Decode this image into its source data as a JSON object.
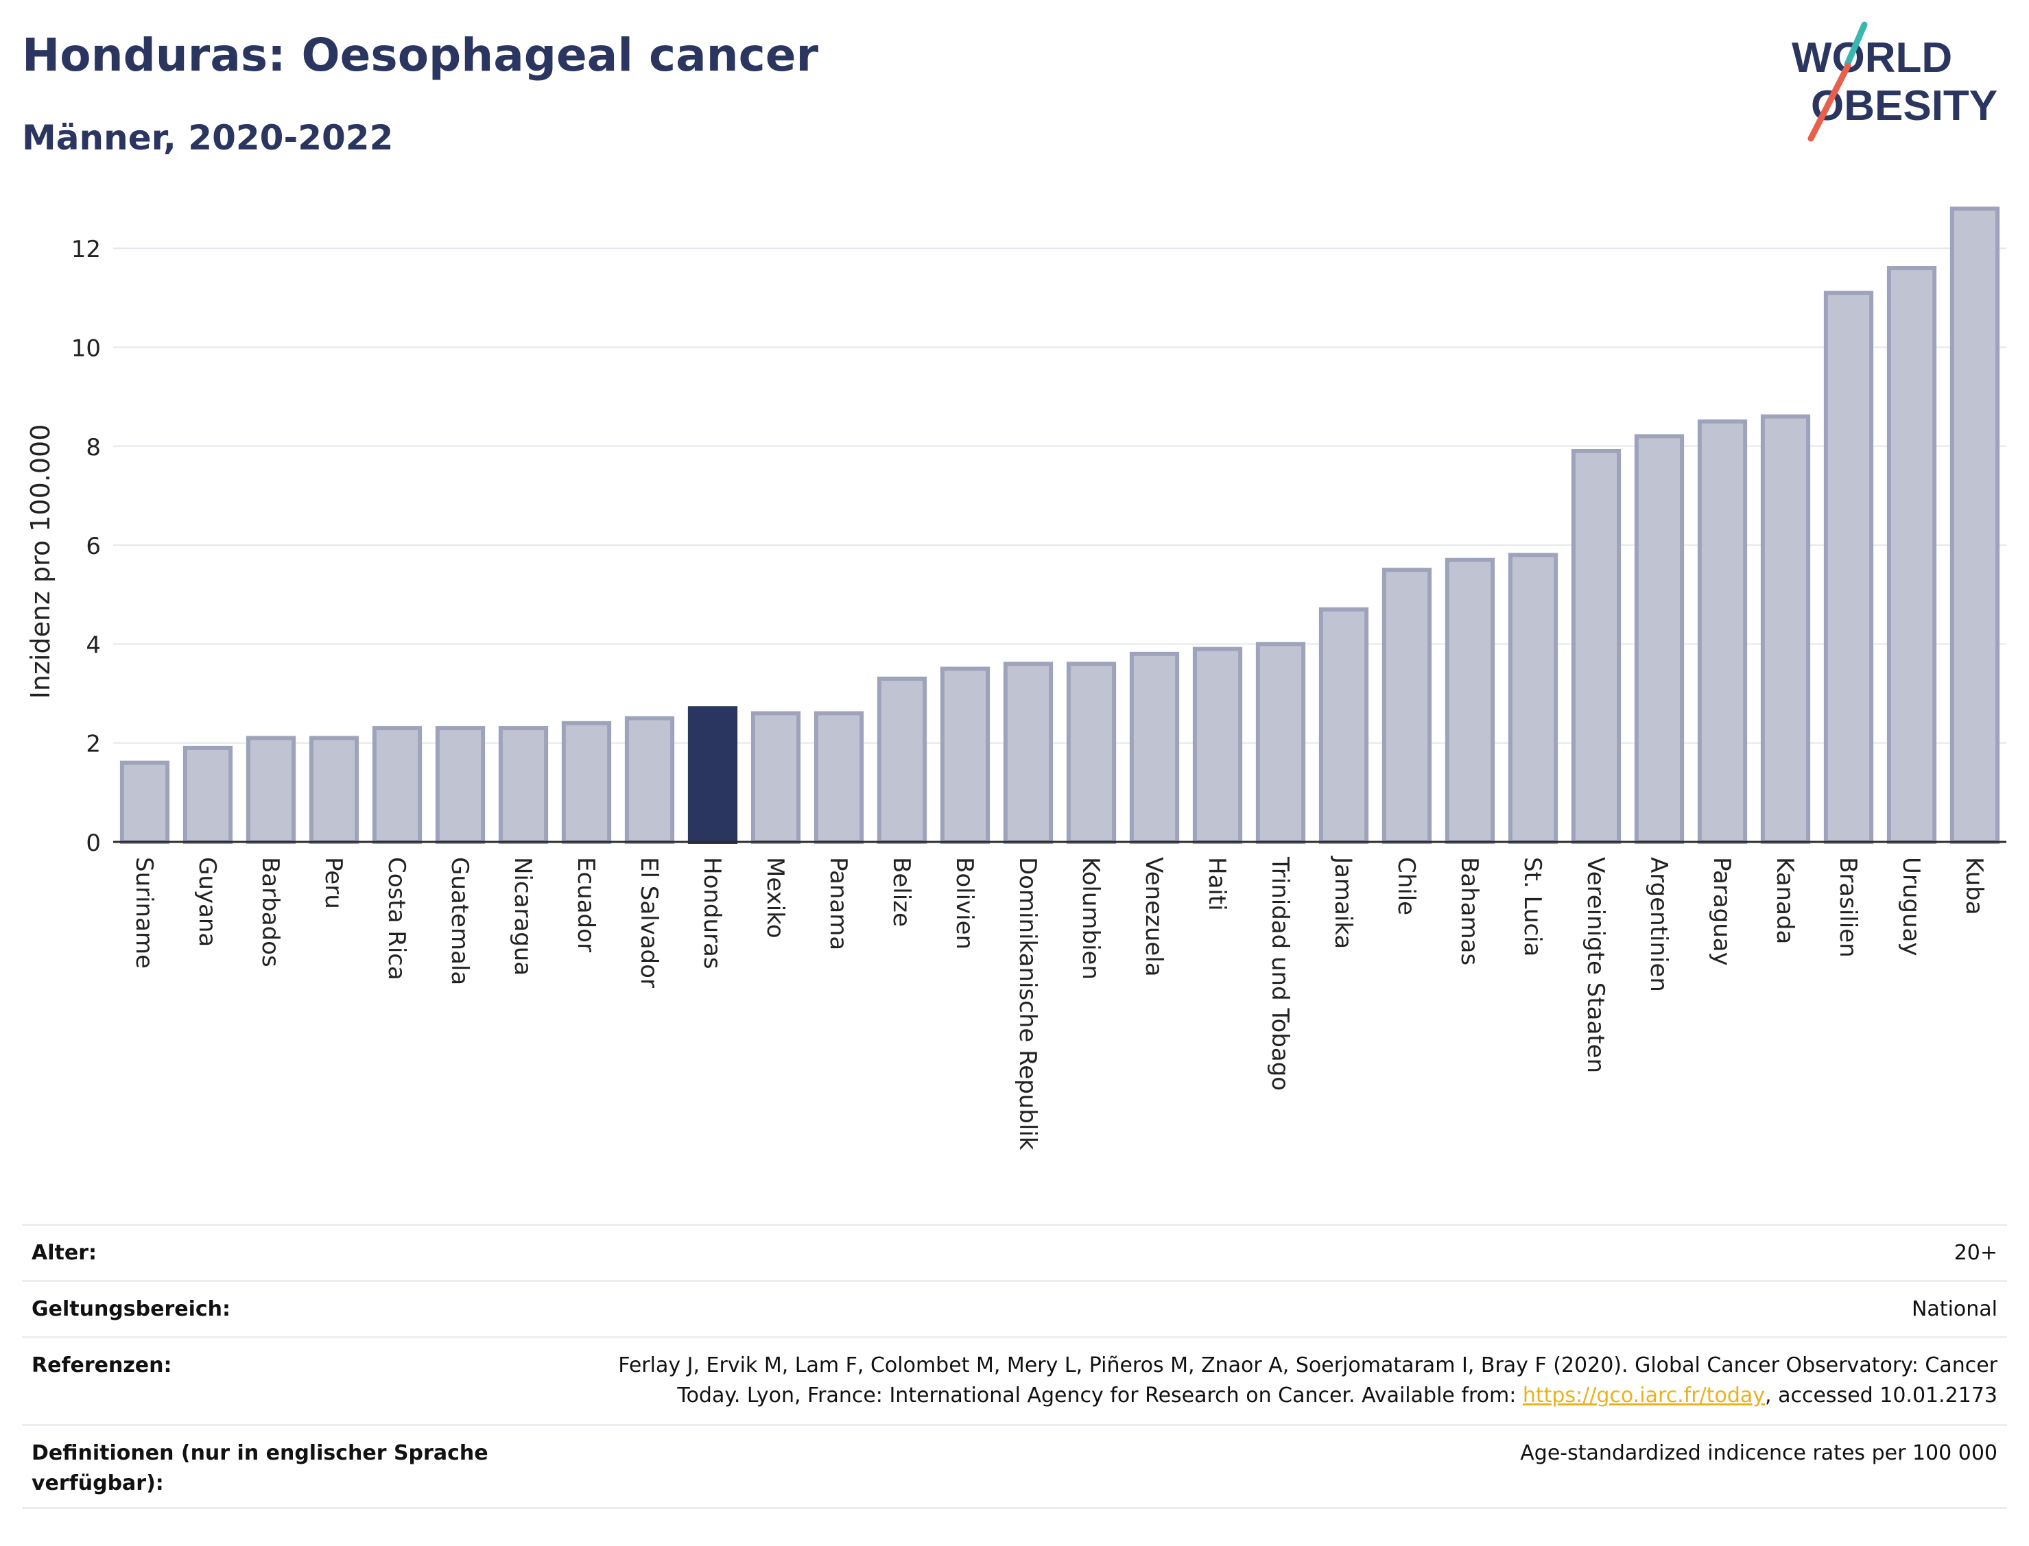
{
  "header": {
    "title": "Honduras: Oesophageal cancer",
    "subtitle": "Männer, 2020-2022"
  },
  "logo": {
    "line1": "WORLD",
    "line2": "OBESITY",
    "colors": {
      "text": "#2a3560",
      "slash_teal": "#38b6b0",
      "slash_red": "#e8604c"
    }
  },
  "chart_data": {
    "type": "bar",
    "ylabel": "Inzidenz pro 100.000",
    "ylim": [
      0,
      13
    ],
    "yticks": [
      0,
      2,
      4,
      6,
      8,
      10,
      12
    ],
    "grid": true,
    "highlight": "Honduras",
    "colors": {
      "bar": "#c0c3d1",
      "bar_edge": "#9ea3bb",
      "highlight": "#2a3560"
    },
    "categories": [
      "Suriname",
      "Guyana",
      "Barbados",
      "Peru",
      "Costa Rica",
      "Guatemala",
      "Nicaragua",
      "Ecuador",
      "El Salvador",
      "Honduras",
      "Mexiko",
      "Panama",
      "Belize",
      "Bolivien",
      "Dominikanische Republik",
      "Kolumbien",
      "Venezuela",
      "Haiti",
      "Trinidad und Tobago",
      "Jamaika",
      "Chile",
      "Bahamas",
      "St. Lucia",
      "Vereinigte Staaten",
      "Argentinien",
      "Paraguay",
      "Kanada",
      "Brasilien",
      "Uruguay",
      "Kuba"
    ],
    "values": [
      1.6,
      1.9,
      2.1,
      2.1,
      2.3,
      2.3,
      2.3,
      2.4,
      2.5,
      2.7,
      2.6,
      2.6,
      3.3,
      3.5,
      3.6,
      3.6,
      3.8,
      3.9,
      4.0,
      4.7,
      5.5,
      5.7,
      5.8,
      7.9,
      8.2,
      8.5,
      8.6,
      11.1,
      11.6,
      12.8
    ]
  },
  "info": {
    "age_label": "Alter:",
    "age_value": "20+",
    "scope_label": "Geltungsbereich:",
    "scope_value": "National",
    "ref_label": "Referenzen:",
    "ref_text_1": "Ferlay J, Ervik M, Lam F, Colombet M, Mery L, Piñeros M, Znaor A, Soerjomataram I, Bray F (2020). Global Cancer Observatory: Cancer",
    "ref_text_2": "Today. Lyon, France: International Agency for Research on Cancer. Available from:",
    "ref_link": "https://gco.iarc.fr/today",
    "ref_text_3": ", accessed 10.01.2173",
    "def_label": "Definitionen (nur in englischer Sprache verfügbar):",
    "def_value": "Age-standardized indicence rates per 100 000"
  }
}
